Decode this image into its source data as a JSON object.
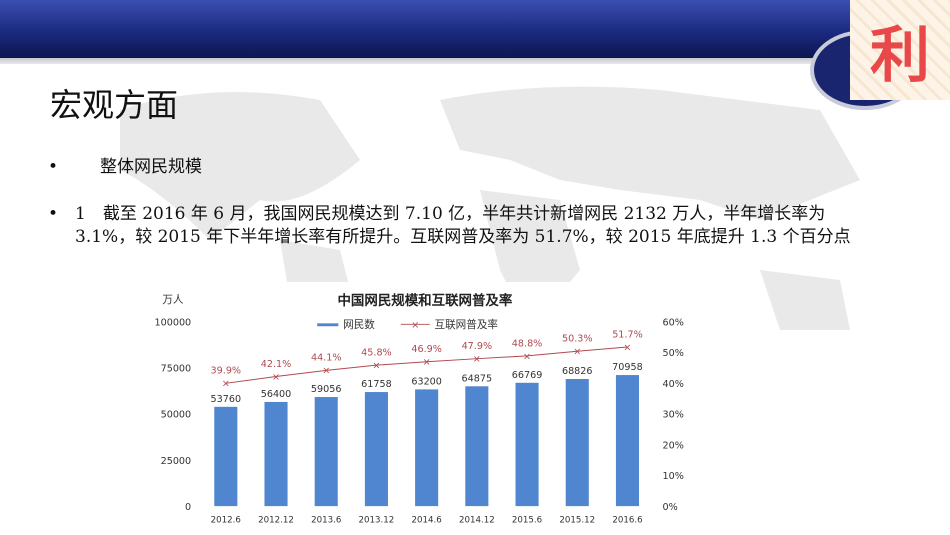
{
  "slide": {
    "title": "宏观方面",
    "bullets": [
      {
        "marker": "•",
        "text": "整体网民规模"
      },
      {
        "marker": "•",
        "text": "1　截至 2016 年 6 月，我国网民规模达到 7.10 亿，半年共计新增网民 2132 万人，半年增长率为 3.1%，较 2015 年下半年增长率有所提升。互联网普及率为 51.7%，较 2015 年底提升 1.3 个百分点"
      }
    ],
    "logo_text": "利"
  },
  "chart_data": {
    "type": "bar+line",
    "title": "中国网民规模和互联网普及率",
    "ylabel": "万人",
    "categories": [
      "2012.6",
      "2012.12",
      "2013.6",
      "2013.12",
      "2014.6",
      "2014.12",
      "2015.6",
      "2015.12",
      "2016.6"
    ],
    "series": [
      {
        "name": "网民数",
        "type": "bar",
        "axis": "left",
        "color": "#4f86cf",
        "values": [
          53760,
          56400,
          59056,
          61758,
          63200,
          64875,
          66769,
          68826,
          70958
        ],
        "labels": [
          "53760",
          "56400",
          "59056",
          "61758",
          "63200",
          "64875",
          "66769",
          "68826",
          "70958"
        ]
      },
      {
        "name": "互联网普及率",
        "type": "line",
        "axis": "right",
        "color": "#b04a50",
        "values": [
          39.9,
          42.1,
          44.1,
          45.8,
          46.9,
          47.9,
          48.8,
          50.3,
          51.7
        ],
        "labels": [
          "39.9%",
          "42.1%",
          "44.1%",
          "45.8%",
          "46.9%",
          "47.9%",
          "48.8%",
          "50.3%",
          "51.7%"
        ]
      }
    ],
    "left_axis": {
      "range": [
        0,
        100000
      ],
      "ticks": [
        "0",
        "25000",
        "50000",
        "75000",
        "100000"
      ]
    },
    "right_axis": {
      "range": [
        0,
        60
      ],
      "ticks": [
        "0%",
        "10%",
        "20%",
        "30%",
        "40%",
        "50%",
        "60%"
      ]
    },
    "legend": "top",
    "grid": false
  }
}
